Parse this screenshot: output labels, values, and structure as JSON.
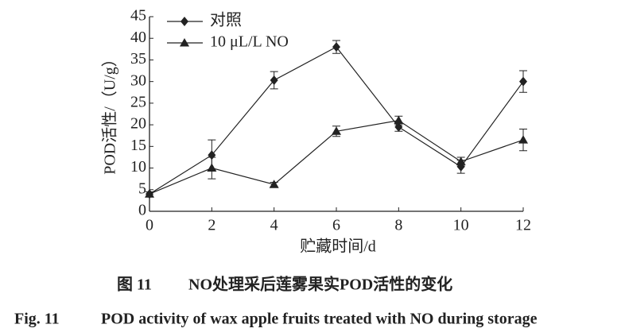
{
  "chart_data": {
    "type": "line",
    "x_label": "贮藏时间/d",
    "y_label": "POD活性/（U/g）",
    "x": [
      0,
      2,
      4,
      6,
      8,
      10,
      12
    ],
    "xlim": [
      0,
      12
    ],
    "xticks": [
      0,
      2,
      4,
      6,
      8,
      10,
      12
    ],
    "ylim": [
      0,
      45
    ],
    "yticks": [
      0,
      5,
      10,
      15,
      20,
      25,
      30,
      35,
      40,
      45
    ],
    "legend": "upper left",
    "series": [
      {
        "name": "对照",
        "color": "#222222",
        "marker": "diamond",
        "values": [
          4,
          13,
          30.3,
          38,
          19.5,
          10.3,
          30
        ],
        "errors": [
          0.5,
          3.5,
          2,
          1.5,
          1,
          1.5,
          2.5
        ]
      },
      {
        "name": "10 μL/L NO",
        "color": "#222222",
        "marker": "triangle",
        "values": [
          4,
          10,
          6.2,
          18.5,
          21,
          11.5,
          16.5
        ],
        "errors": [
          0.5,
          2.5,
          0.5,
          1.2,
          1,
          1,
          2.5
        ]
      }
    ]
  },
  "caption": {
    "cn_label": "图 11",
    "cn_text": "NO处理采后莲雾果实POD活性的变化",
    "en_label": "Fig. 11",
    "en_text": "POD activity of wax apple fruits treated with NO during storage"
  }
}
